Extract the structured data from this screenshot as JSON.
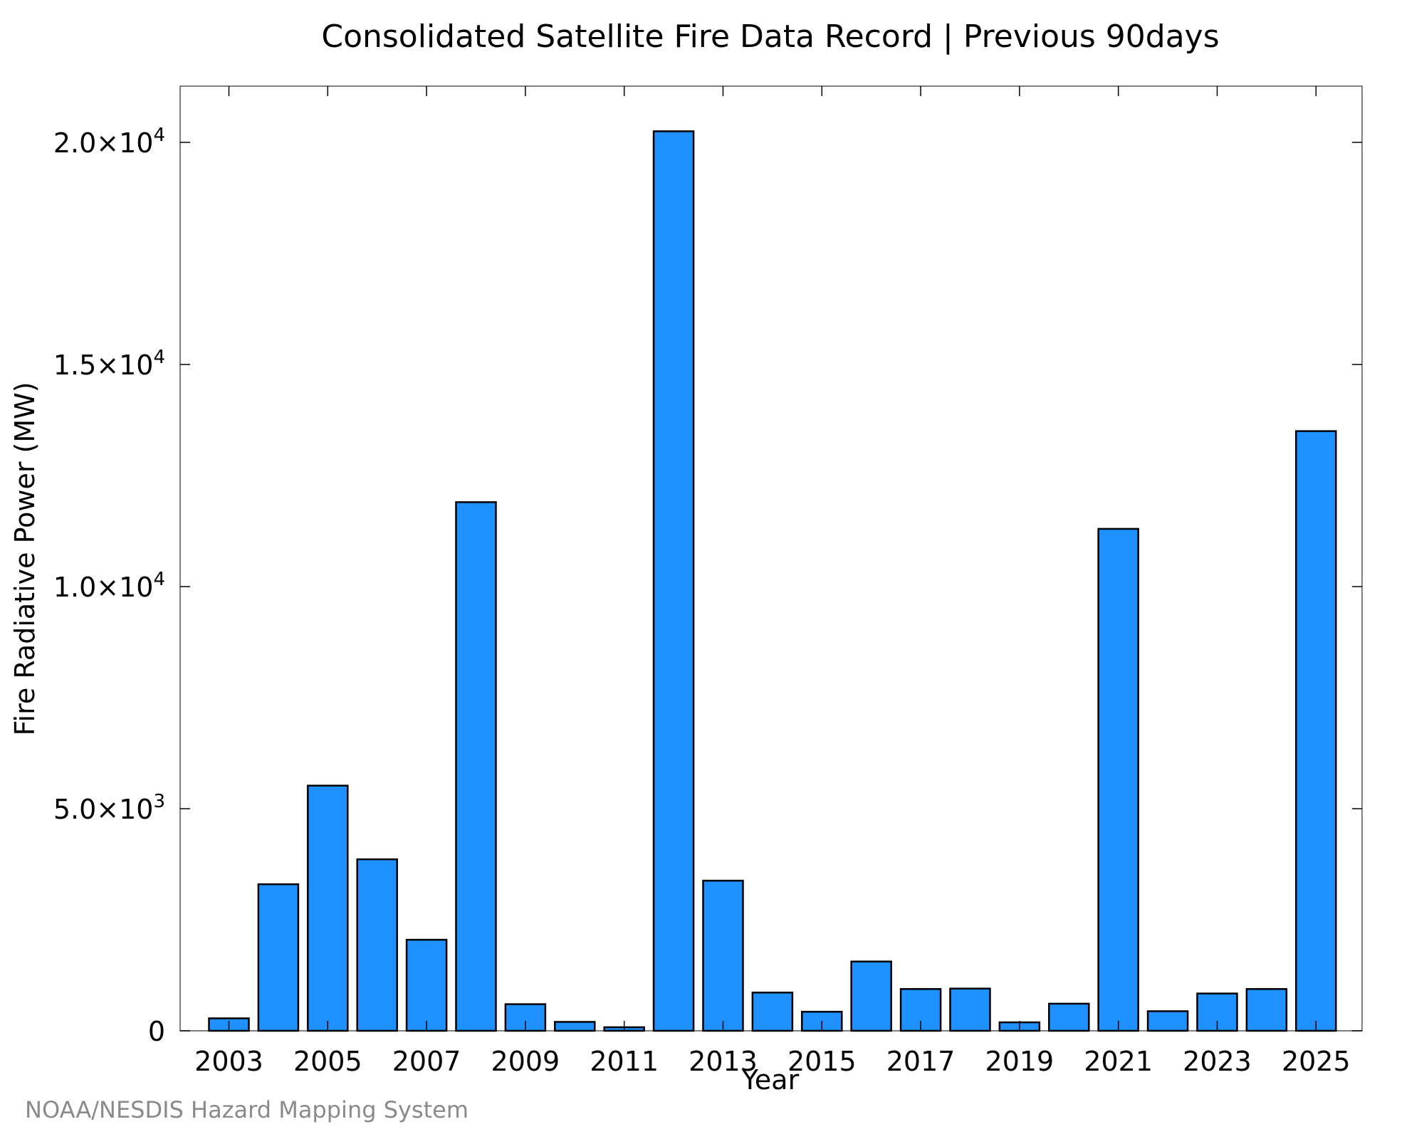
{
  "chart_data": {
    "type": "bar",
    "title": "Consolidated Satellite Fire Data Record | Previous 90days",
    "xlabel": "Year",
    "ylabel": "Fire Radiative Power (MW)",
    "categories": [
      "2003",
      "2004",
      "2005",
      "2006",
      "2007",
      "2008",
      "2009",
      "2010",
      "2011",
      "2012",
      "2013",
      "2014",
      "2015",
      "2016",
      "2017",
      "2018",
      "2019",
      "2020",
      "2021",
      "2022",
      "2023",
      "2024",
      "2025"
    ],
    "values": [
      280,
      3300,
      5520,
      3860,
      2050,
      11900,
      600,
      200,
      80,
      20250,
      3380,
      860,
      430,
      1560,
      940,
      950,
      190,
      610,
      11300,
      440,
      840,
      940,
      13500
    ],
    "xticks": [
      "2003",
      "2005",
      "2007",
      "2009",
      "2011",
      "2013",
      "2015",
      "2017",
      "2019",
      "2021",
      "2023",
      "2025"
    ],
    "yticks": [
      {
        "value": 0,
        "mantissa": "0",
        "exp": ""
      },
      {
        "value": 5000,
        "mantissa": "5.0×10",
        "exp": "3"
      },
      {
        "value": 10000,
        "mantissa": "1.0×10",
        "exp": "4"
      },
      {
        "value": 15000,
        "mantissa": "1.5×10",
        "exp": "4"
      },
      {
        "value": 20000,
        "mantissa": "2.0×10",
        "exp": "4"
      }
    ],
    "ylim": [
      0,
      21250
    ],
    "bar_color": "#1e90ff",
    "edge_color": "#000000",
    "grid": false,
    "legend": "none"
  },
  "credit": "NOAA/NESDIS Hazard Mapping System"
}
